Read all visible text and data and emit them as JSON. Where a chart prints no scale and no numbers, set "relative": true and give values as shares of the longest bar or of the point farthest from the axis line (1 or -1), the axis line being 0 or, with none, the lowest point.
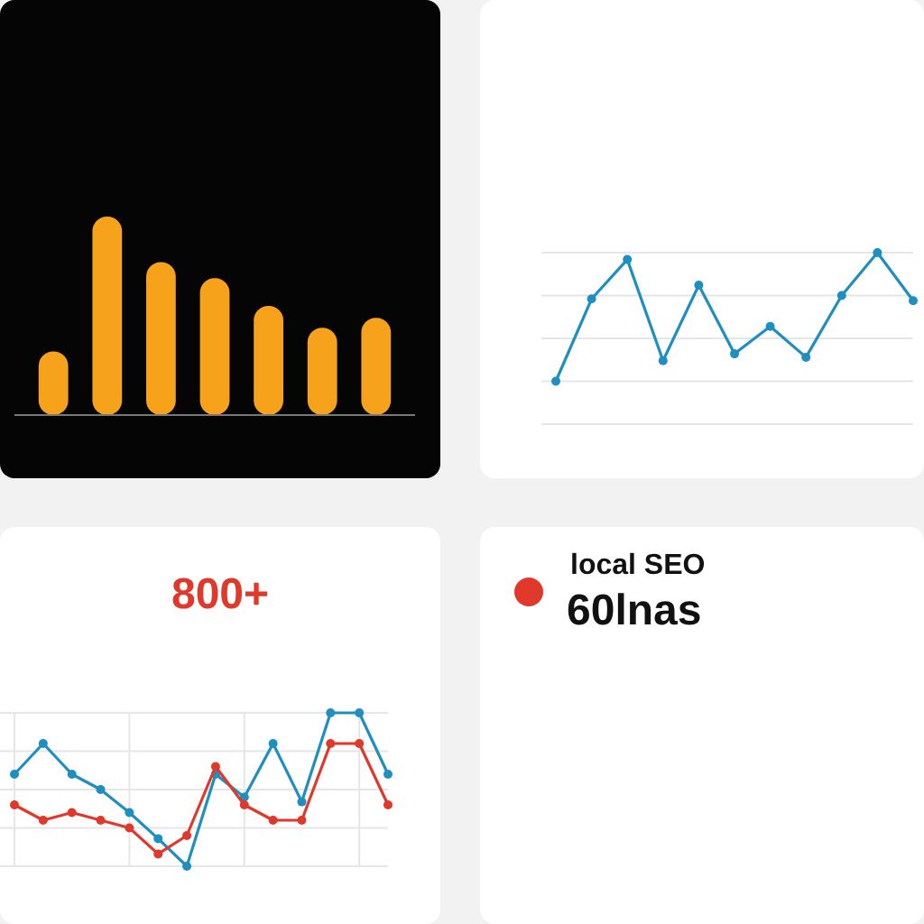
{
  "chart_data": [
    {
      "type": "bar",
      "relative": true,
      "categories": [
        null,
        null,
        null,
        null,
        null,
        null,
        null
      ],
      "values": [
        0.32,
        1,
        0.77,
        0.69,
        0.55,
        0.44,
        0.49
      ],
      "color": "#f7a21b"
    },
    {
      "type": "line",
      "relative": true,
      "categories": [
        null,
        null,
        null,
        null,
        null,
        null,
        null,
        null,
        null,
        null,
        null
      ],
      "series": [
        {
          "color": "#1f8fc0",
          "values": [
            0.25,
            0.73,
            0.96,
            0.37,
            0.81,
            0.41,
            0.57,
            0.39,
            0.75,
            1,
            0.72
          ]
        }
      ],
      "grid": "y",
      "marker": "circle"
    },
    {
      "type": "line",
      "title": "800+",
      "relative": true,
      "categories": [
        null,
        null,
        null,
        null,
        null,
        null,
        null,
        null,
        null,
        null,
        null,
        null,
        null,
        null
      ],
      "series": [
        {
          "color": "#1f8fc0",
          "values": [
            0.6,
            0.8,
            0.6,
            0.5,
            0.35,
            0.18,
            0,
            0.6,
            0.45,
            0.8,
            0.42,
            1,
            1,
            0.6
          ]
        },
        {
          "color": "#e0392b",
          "values": [
            0.4,
            0.3,
            0.35,
            0.3,
            0.25,
            0.08,
            0.2,
            0.65,
            0.4,
            0.3,
            0.3,
            0.8,
            0.8,
            0.4
          ]
        }
      ],
      "grid": true,
      "marker": "circle"
    },
    {
      "type": "other",
      "title": "local SEO",
      "annotations": [
        "60lnas"
      ]
    }
  ]
}
